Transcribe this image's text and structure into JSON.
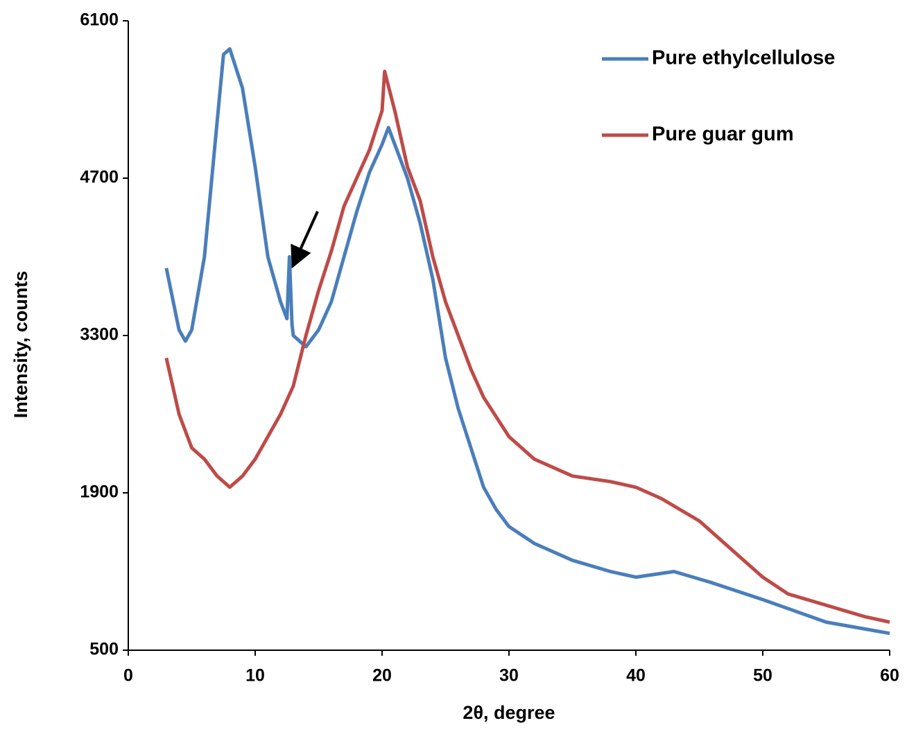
{
  "chart_data": {
    "type": "line",
    "x_label": "2θ, degree",
    "y_label": "Intensity, counts",
    "xlim": [
      0,
      60
    ],
    "xticks": [
      0,
      10,
      20,
      30,
      40,
      50,
      60
    ],
    "ylim": [
      500,
      6100
    ],
    "yticks": [
      500,
      1900,
      3300,
      4700,
      6100
    ],
    "legend": "top-right",
    "series": [
      {
        "name": "Pure ethylcellulose",
        "color": "#4a7ebb",
        "x": [
          3,
          4,
          4.5,
          5,
          6,
          7,
          7.5,
          8,
          9,
          10,
          11,
          12,
          12.5,
          12.7,
          12.9,
          13,
          14,
          15,
          16,
          17,
          18,
          19,
          20,
          20.5,
          21,
          22,
          23,
          24,
          25,
          26,
          27,
          28,
          29,
          30,
          32,
          35,
          38,
          40,
          43,
          46,
          50,
          55,
          60
        ],
        "values": [
          3900,
          3350,
          3250,
          3350,
          4000,
          5200,
          5800,
          5850,
          5500,
          4800,
          4000,
          3600,
          3450,
          4000,
          3400,
          3300,
          3200,
          3350,
          3600,
          4000,
          4400,
          4750,
          5000,
          5150,
          5000,
          4700,
          4300,
          3800,
          3100,
          2650,
          2300,
          1950,
          1750,
          1600,
          1450,
          1300,
          1200,
          1150,
          1200,
          1100,
          950,
          750,
          650
        ]
      },
      {
        "name": "Pure guar gum",
        "color": "#be4b48",
        "x": [
          3,
          4,
          5,
          6,
          7,
          8,
          9,
          10,
          11,
          12,
          13,
          14,
          15,
          16,
          17,
          18,
          19,
          20,
          20.2,
          21,
          22,
          23,
          24,
          25,
          26,
          27,
          28,
          30,
          32,
          35,
          38,
          40,
          42,
          45,
          48,
          50,
          52,
          55,
          58,
          60
        ],
        "values": [
          3100,
          2600,
          2300,
          2200,
          2050,
          1950,
          2050,
          2200,
          2400,
          2600,
          2850,
          3300,
          3700,
          4050,
          4450,
          4700,
          4950,
          5300,
          5650,
          5300,
          4800,
          4500,
          4000,
          3600,
          3300,
          3000,
          2750,
          2400,
          2200,
          2050,
          2000,
          1950,
          1850,
          1650,
          1350,
          1150,
          1000,
          900,
          800,
          750
        ]
      }
    ]
  }
}
